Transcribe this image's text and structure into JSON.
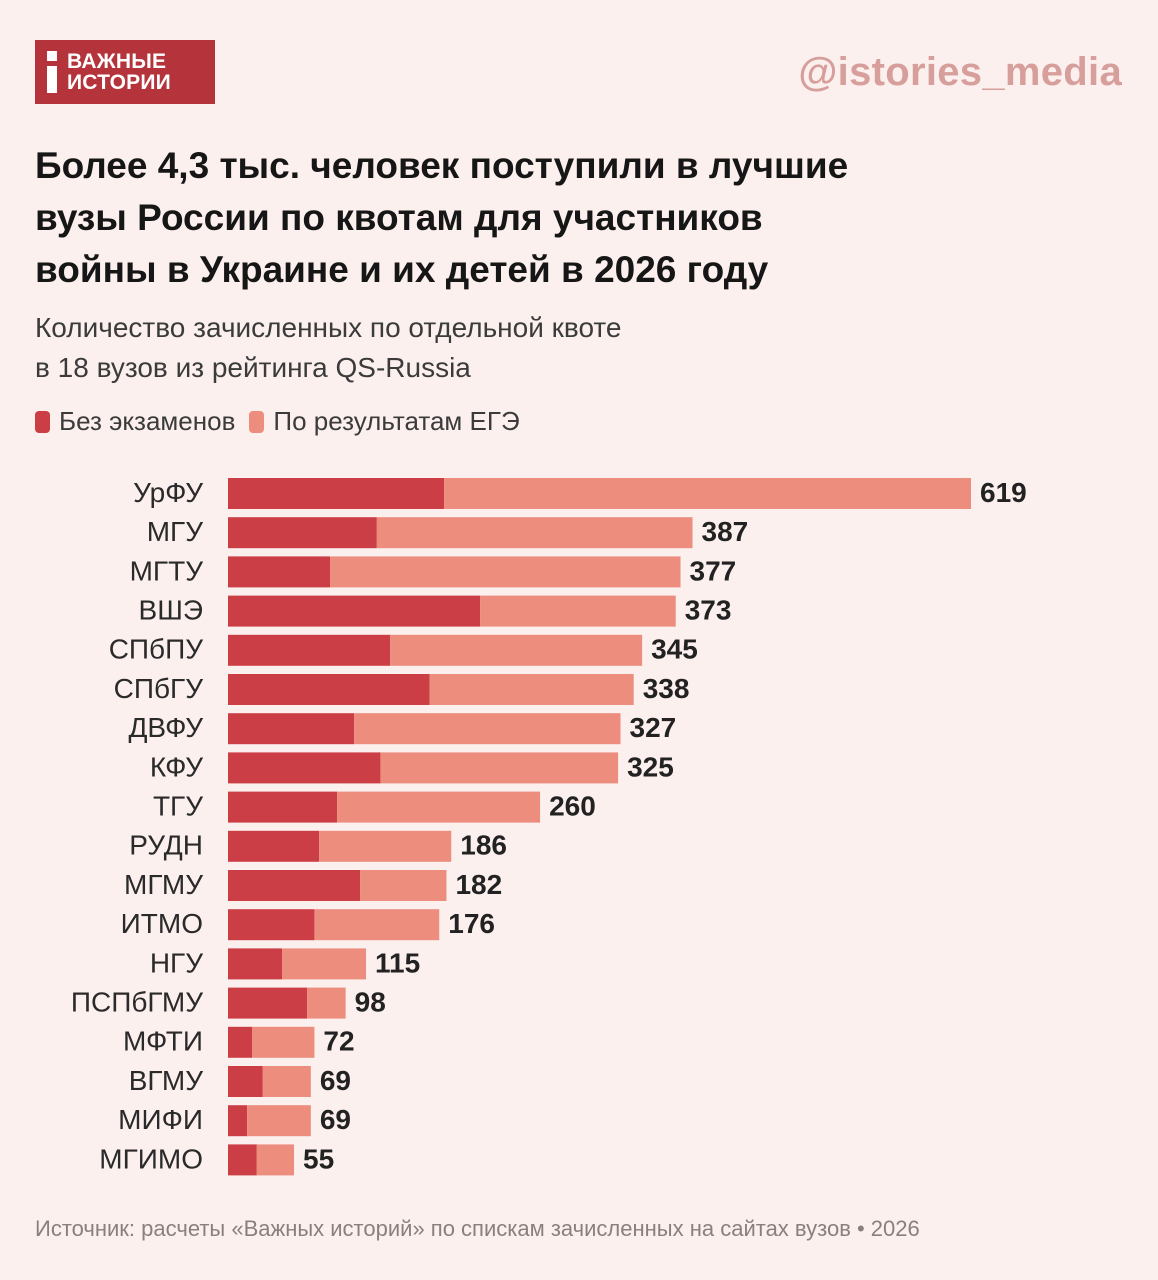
{
  "logo": {
    "line1": "ВАЖНЫЕ",
    "line2": "ИСТОРИИ"
  },
  "handle": "@istories_media",
  "title": "Более 4,3 тыс. человек поступили в лучшие\nвузы России по квотам для участников\nвойны в Украине и их детей в 2026 году",
  "subtitle": "Количество зачисленных по отдельной квоте\nв 18 вузов из рейтинга QS-Russia",
  "legend": {
    "no_exam": "Без экзаменов",
    "ege": "По результатам ЕГЭ"
  },
  "colors": {
    "no_exam": "#cc3e45",
    "ege": "#ec8d7e",
    "background": "#fcf0ef",
    "brand": "#b5343c"
  },
  "chart_data": {
    "type": "bar",
    "orientation": "horizontal",
    "stacked": true,
    "categories": [
      "УрФУ",
      "МГУ",
      "МГТУ",
      "ВШЭ",
      "СПбПУ",
      "СПбГУ",
      "ДВФУ",
      "КФУ",
      "ТГУ",
      "РУДН",
      "МГМУ",
      "ИТМО",
      "НГУ",
      "ПСПбГМУ",
      "МФТИ",
      "ВГМУ",
      "МИФИ",
      "МГИМО"
    ],
    "series": [
      {
        "name": "Без экзаменов",
        "values": [
          180,
          124,
          85,
          210,
          135,
          168,
          105,
          127,
          91,
          76,
          110,
          72,
          45,
          66,
          20,
          29,
          16,
          24
        ]
      },
      {
        "name": "По результатам ЕГЭ",
        "values": [
          439,
          263,
          292,
          163,
          210,
          170,
          222,
          198,
          169,
          110,
          72,
          104,
          70,
          32,
          52,
          40,
          53,
          31
        ]
      }
    ],
    "totals": [
      619,
      387,
      377,
      373,
      345,
      338,
      327,
      325,
      260,
      186,
      182,
      176,
      115,
      98,
      72,
      69,
      69,
      55
    ],
    "xlim": [
      0,
      619
    ],
    "grid": false,
    "legend_position": "top-left"
  },
  "source": "Источник: расчеты «Важных историй» по спискам зачисленных на сайтах вузов • 2026"
}
